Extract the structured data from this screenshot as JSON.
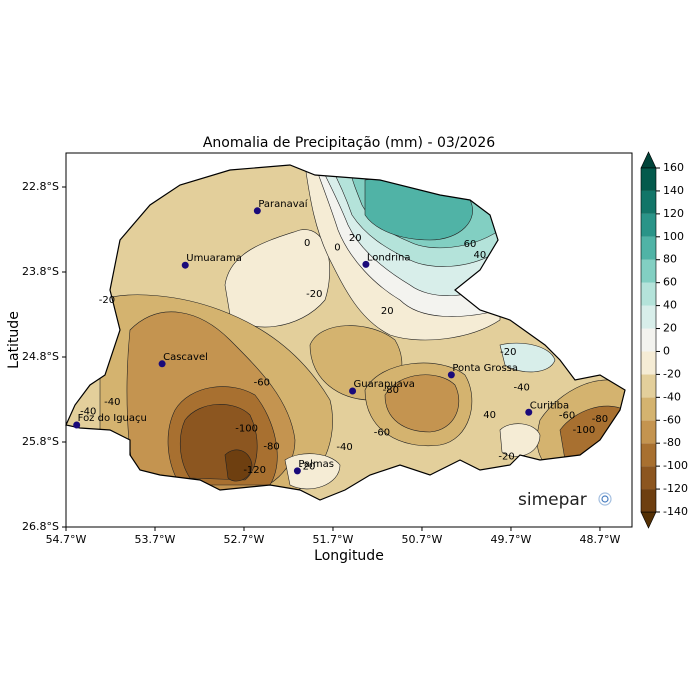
{
  "map": {
    "title": "Anomalia de Precipitação (mm) - 03/2026",
    "xlabel": "Longitude",
    "ylabel": "Latitude",
    "xlim": [
      -54.7,
      -48.34
    ],
    "ylim": [
      -26.8,
      -22.4
    ],
    "xticks": [
      {
        "value": -54.7,
        "label": "54.7°W"
      },
      {
        "value": -53.7,
        "label": "53.7°W"
      },
      {
        "value": -52.7,
        "label": "52.7°W"
      },
      {
        "value": -51.7,
        "label": "51.7°W"
      },
      {
        "value": -50.7,
        "label": "50.7°W"
      },
      {
        "value": -49.7,
        "label": "49.7°W"
      },
      {
        "value": -48.7,
        "label": "48.7°W"
      }
    ],
    "yticks": [
      {
        "value": -22.8,
        "label": "22.8°S"
      },
      {
        "value": -23.8,
        "label": "23.8°S"
      },
      {
        "value": -24.8,
        "label": "24.8°S"
      },
      {
        "value": -25.8,
        "label": "25.8°S"
      },
      {
        "value": -26.8,
        "label": "26.8°S"
      }
    ],
    "cities": [
      {
        "name": "Paranavaí",
        "lon": -52.55,
        "lat": -23.08
      },
      {
        "name": "Londrina",
        "lon": -51.33,
        "lat": -23.71
      },
      {
        "name": "Umuarama",
        "lon": -53.36,
        "lat": -23.72
      },
      {
        "name": "Cascavel",
        "lon": -53.62,
        "lat": -24.88
      },
      {
        "name": "Guarapuava",
        "lon": -51.48,
        "lat": -25.2
      },
      {
        "name": "Ponta Grossa",
        "lon": -50.37,
        "lat": -25.01
      },
      {
        "name": "Curitiba",
        "lon": -49.5,
        "lat": -25.45
      },
      {
        "name": "Foz do Iguaçu",
        "lon": -54.58,
        "lat": -25.6
      },
      {
        "name": "Palmas",
        "lon": -52.1,
        "lat": -26.14
      }
    ],
    "contour_labels": [
      {
        "label": "0",
        "lon": -51.99,
        "lat": -23.46
      },
      {
        "label": "0",
        "lon": -51.65,
        "lat": -23.51
      },
      {
        "label": "-20",
        "lon": -51.91,
        "lat": -24.06
      },
      {
        "label": "20",
        "lon": -51.09,
        "lat": -24.26
      },
      {
        "label": "40",
        "lon": -50.05,
        "lat": -23.6
      },
      {
        "label": "60",
        "lon": -50.16,
        "lat": -23.47
      },
      {
        "label": "20",
        "lon": -51.45,
        "lat": -23.4
      },
      {
        "label": "-20",
        "lon": -54.24,
        "lat": -24.13
      },
      {
        "label": "-40",
        "lon": -54.45,
        "lat": -25.44
      },
      {
        "label": "-40",
        "lon": -54.18,
        "lat": -25.33
      },
      {
        "label": "-60",
        "lon": -52.5,
        "lat": -25.1
      },
      {
        "label": "-80",
        "lon": -52.39,
        "lat": -25.85
      },
      {
        "label": "-100",
        "lon": -52.67,
        "lat": -25.64
      },
      {
        "label": "-120",
        "lon": -52.58,
        "lat": -26.13
      },
      {
        "label": "-40",
        "lon": -51.57,
        "lat": -25.86
      },
      {
        "label": "-20",
        "lon": -51.99,
        "lat": -26.09
      },
      {
        "label": "-60",
        "lon": -51.15,
        "lat": -25.69
      },
      {
        "label": "-80",
        "lon": -51.05,
        "lat": -25.19
      },
      {
        "label": "-40",
        "lon": -49.58,
        "lat": -25.16
      },
      {
        "label": "40",
        "lon": -49.94,
        "lat": -25.48
      },
      {
        "label": "-60",
        "lon": -49.07,
        "lat": -25.49
      },
      {
        "label": "-80",
        "lon": -48.7,
        "lat": -25.53
      },
      {
        "label": "-100",
        "lon": -48.88,
        "lat": -25.66
      },
      {
        "label": "-20",
        "lon": -49.75,
        "lat": -25.97
      },
      {
        "label": "-20",
        "lon": -49.73,
        "lat": -24.74
      }
    ],
    "colorbar": {
      "ticks": [
        -140,
        -120,
        -100,
        -80,
        -60,
        -40,
        -20,
        0,
        20,
        40,
        60,
        80,
        100,
        120,
        140,
        160
      ],
      "colors": [
        "#543005",
        "#6e3f10",
        "#8c5620",
        "#a87030",
        "#c49450",
        "#d4b36f",
        "#e3cf9b",
        "#f5ecd5",
        "#f3f3ef",
        "#d8eeea",
        "#b4e3da",
        "#82cfc2",
        "#50b3a6",
        "#2a9488",
        "#127568",
        "#035a4c",
        "#01443a"
      ]
    },
    "logo": "simepar"
  }
}
